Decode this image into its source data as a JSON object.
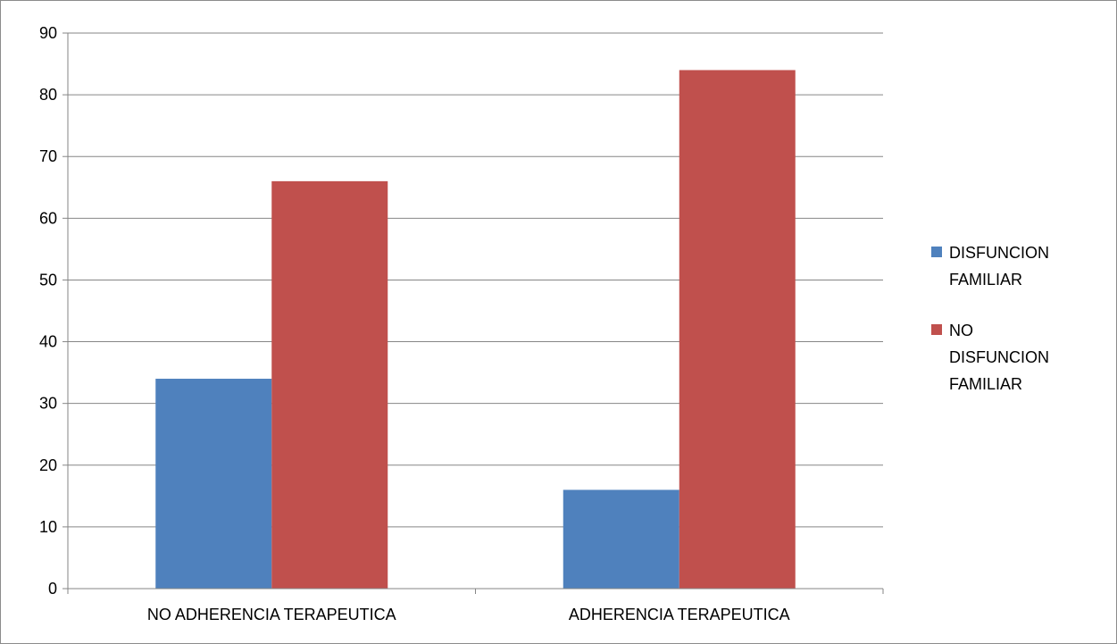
{
  "chart_data": {
    "type": "bar",
    "title": "",
    "xlabel": "",
    "ylabel": "",
    "categories": [
      "NO ADHERENCIA TERAPEUTICA",
      "ADHERENCIA TERAPEUTICA"
    ],
    "series": [
      {
        "name": "DISFUNCION FAMILIAR",
        "values": [
          34,
          16
        ],
        "color": "#4f81bd"
      },
      {
        "name": "NO DISFUNCION FAMILIAR",
        "values": [
          66,
          84
        ],
        "color": "#c0504d"
      }
    ],
    "ylim": [
      0,
      90
    ],
    "yticks": [
      0,
      10,
      20,
      30,
      40,
      50,
      60,
      70,
      80,
      90
    ],
    "grid": true,
    "legend_position": "right",
    "legend_lines": [
      [
        "DISFUNCION",
        "FAMILIAR"
      ],
      [
        "NO",
        "DISFUNCION",
        "FAMILIAR"
      ]
    ]
  }
}
